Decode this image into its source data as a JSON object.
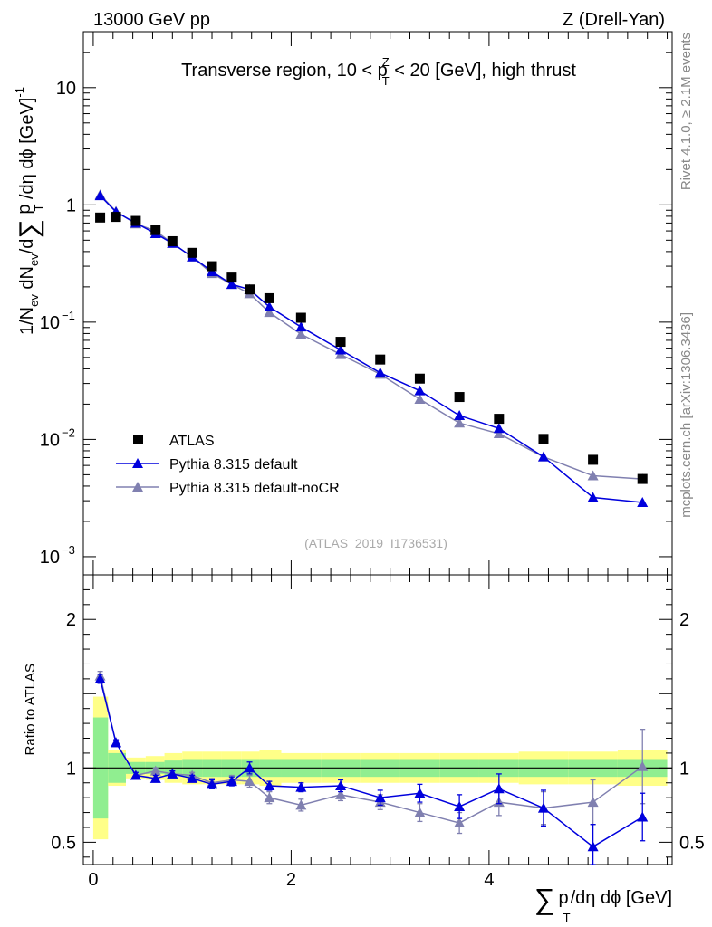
{
  "header": {
    "left": "13000 GeV pp",
    "right": "Z (Drell-Yan)"
  },
  "annotations": {
    "title_pre": "Transverse region, 10 < p",
    "title_sup": "Z",
    "title_sub": "T",
    "title_post": " < 20 [GeV], high thrust",
    "rivet": "Rivet 4.1.0, ≥ 2.1M events",
    "mcplots": "mcplots.cern.ch [arXiv:1306.3436]",
    "analysis_ref": "(ATLAS_2019_I1736531)"
  },
  "axes": {
    "y_main_label": "1/N",
    "y_main_ev1": "ev",
    "y_main_mid": " dN",
    "y_main_ev2": "ev",
    "y_main_rest": "/d",
    "y_main_sum": "∑",
    "y_main_p": " p",
    "y_main_T": "T",
    "y_main_end": " /dη dϕ  [GeV]",
    "y_main_exp": "-1",
    "y_ratio_label": "Ratio to ATLAS",
    "x_sum": "∑",
    "x_p": "p",
    "x_T": "T",
    "x_rest": "/dη dϕ [GeV]",
    "y_main_ticks": [
      {
        "value": 10,
        "label": "10"
      },
      {
        "value": 1,
        "label": "1"
      },
      {
        "value": 0.1,
        "base": "10",
        "exp": "−1"
      },
      {
        "value": 0.01,
        "base": "10",
        "exp": "−2"
      },
      {
        "value": 0.001,
        "base": "10",
        "exp": "−3"
      }
    ],
    "y_ratio_ticks": [
      {
        "value": 2,
        "label": "2"
      },
      {
        "value": 1,
        "label": "1"
      },
      {
        "value": 0.5,
        "label": "0.5"
      }
    ],
    "x_ticks": [
      {
        "value": 0,
        "label": "0"
      },
      {
        "value": 2,
        "label": "2"
      },
      {
        "value": 4,
        "label": "4"
      }
    ]
  },
  "legend": {
    "entries": [
      {
        "label": "ATLAS",
        "marker": "square",
        "color": "#000000"
      },
      {
        "label": "Pythia 8.315 default",
        "marker": "triangle",
        "color": "#0000dd"
      },
      {
        "label": "Pythia 8.315 default-noCR",
        "marker": "triangle",
        "color": "#8080b0"
      }
    ]
  },
  "chart_data": {
    "type": "line",
    "title": "Transverse region, 10 < pT^Z < 20 [GeV], high thrust",
    "xlabel": "∑ pT/dη dϕ [GeV]",
    "ylabel": "1/Nev dNev/d∑ pT /dη dϕ [GeV]^-1",
    "ratio_ylabel": "Ratio to ATLAS",
    "xlim": [
      -0.1,
      5.85
    ],
    "ylim": [
      0.0007,
      30
    ],
    "yscale": "log",
    "ratio_ylim": [
      0.35,
      2.3
    ],
    "x": [
      0.07,
      0.23,
      0.43,
      0.63,
      0.8,
      1.0,
      1.2,
      1.4,
      1.58,
      1.78,
      2.1,
      2.5,
      2.9,
      3.3,
      3.7,
      4.1,
      4.55,
      5.05,
      5.55
    ],
    "bin_edges": [
      0.0,
      0.15,
      0.33,
      0.53,
      0.72,
      0.9,
      1.1,
      1.3,
      1.5,
      1.68,
      1.9,
      2.3,
      2.7,
      3.1,
      3.5,
      3.9,
      4.3,
      4.8,
      5.3,
      5.8
    ],
    "band_inner": [
      0.34,
      0.1,
      0.04,
      0.04,
      0.05,
      0.06,
      0.06,
      0.06,
      0.06,
      0.06,
      0.06,
      0.06,
      0.06,
      0.06,
      0.06,
      0.06,
      0.06,
      0.06,
      0.06
    ],
    "band_outer": [
      0.48,
      0.12,
      0.07,
      0.08,
      0.1,
      0.11,
      0.11,
      0.11,
      0.11,
      0.12,
      0.1,
      0.1,
      0.1,
      0.1,
      0.1,
      0.1,
      0.11,
      0.11,
      0.12
    ],
    "series": [
      {
        "name": "ATLAS",
        "marker": "square",
        "color": "#000000",
        "values": [
          0.78,
          0.79,
          0.73,
          0.61,
          0.49,
          0.39,
          0.3,
          0.24,
          0.19,
          0.16,
          0.109,
          0.068,
          0.048,
          0.033,
          0.023,
          0.015,
          0.0101,
          0.0067,
          0.0046
        ]
      },
      {
        "name": "Pythia 8.315 default",
        "marker": "triangle",
        "color": "#0000dd",
        "values": [
          1.2,
          0.87,
          0.7,
          0.57,
          0.47,
          0.36,
          0.27,
          0.21,
          0.19,
          0.135,
          0.091,
          0.058,
          0.037,
          0.026,
          0.016,
          0.0124,
          0.0071,
          0.0032,
          0.0029
        ],
        "ratio": [
          1.6,
          1.17,
          0.95,
          0.93,
          0.96,
          0.93,
          0.89,
          0.91,
          1.0,
          0.88,
          0.87,
          0.88,
          0.8,
          0.83,
          0.74,
          0.86,
          0.73,
          0.47,
          0.67
        ],
        "ratio_err": [
          0.03,
          0.02,
          0.02,
          0.02,
          0.02,
          0.02,
          0.03,
          0.03,
          0.04,
          0.03,
          0.03,
          0.04,
          0.05,
          0.06,
          0.08,
          0.1,
          0.12,
          0.15,
          0.16
        ]
      },
      {
        "name": "Pythia 8.315 default-noCR",
        "marker": "triangle",
        "color": "#8080b0",
        "values": [
          1.22,
          0.88,
          0.69,
          0.6,
          0.47,
          0.36,
          0.26,
          0.21,
          0.175,
          0.121,
          0.079,
          0.053,
          0.036,
          0.022,
          0.0138,
          0.0112,
          0.0071,
          0.0049,
          0.0046
        ],
        "ratio": [
          1.62,
          1.17,
          0.95,
          0.98,
          0.96,
          0.95,
          0.9,
          0.92,
          0.91,
          0.8,
          0.75,
          0.82,
          0.77,
          0.7,
          0.63,
          0.77,
          0.73,
          0.77,
          1.01
        ],
        "ratio_err": [
          0.03,
          0.02,
          0.02,
          0.02,
          0.02,
          0.02,
          0.03,
          0.03,
          0.04,
          0.04,
          0.04,
          0.04,
          0.05,
          0.06,
          0.07,
          0.09,
          0.11,
          0.15,
          0.25
        ]
      }
    ]
  },
  "colors": {
    "band_inner": "#90ee90",
    "band_outer": "#ffff88",
    "default": "#0000dd",
    "nocr": "#8080b0"
  }
}
